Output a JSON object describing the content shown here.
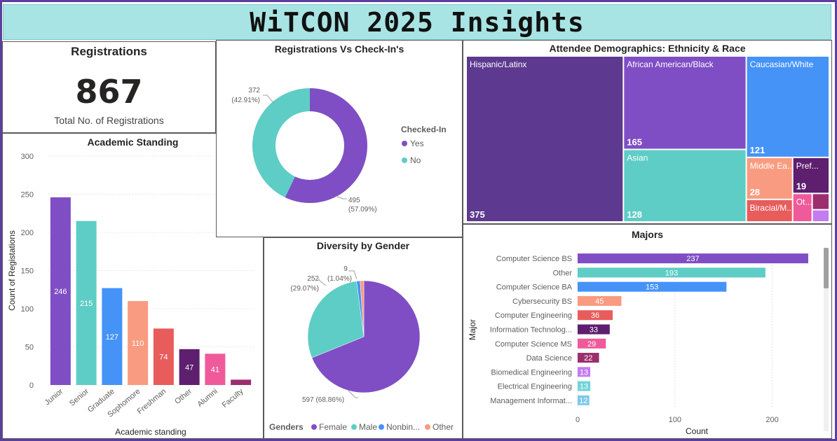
{
  "title": "WiTCON 2025 Insights",
  "kpi": {
    "title": "Registrations",
    "value": "867",
    "label": "Total No. of Registrations"
  },
  "colors": {
    "purple": "#7f4ec4",
    "teal": "#5ecdc5",
    "blue": "#4593f7",
    "salmon": "#f99b80",
    "red": "#e85c5c",
    "dark_purple": "#5d1f6e",
    "pink": "#ef5a9b",
    "magenta": "#9c2e6d",
    "lavender": "#c27bf0",
    "light_teal": "#70d4d8"
  },
  "chart_data": [
    {
      "id": "academic",
      "type": "bar",
      "title": "Academic Standing",
      "xlabel": "Academic standing",
      "ylabel": "Count of Registations",
      "ylim": [
        0,
        300
      ],
      "yticks": [
        "0",
        "50",
        "100",
        "150",
        "200",
        "250",
        "300"
      ],
      "categories": [
        "Junior",
        "Senior",
        "Graduate",
        "Sophomore",
        "Freshman",
        "Other",
        "Alumni",
        "Faculty"
      ],
      "values": [
        246,
        215,
        127,
        110,
        74,
        47,
        41,
        7
      ],
      "data_labels": [
        "246",
        "215",
        "127",
        "110",
        "74",
        "47",
        "41",
        ""
      ],
      "colors": [
        "#7f4ec4",
        "#5ecdc5",
        "#4593f7",
        "#f99b80",
        "#e85c5c",
        "#5d1f6e",
        "#ef5a9b",
        "#9c2e6d"
      ]
    },
    {
      "id": "checkin",
      "type": "pie",
      "title": "Registrations Vs Check-In's",
      "legend_title": "Checked-In",
      "legend_position": "right",
      "slices": [
        {
          "name": "Yes",
          "value": 495,
          "label": "495",
          "pct": "(57.09%)",
          "color": "#7f4ec4"
        },
        {
          "name": "No",
          "value": 372,
          "label": "372",
          "pct": "(42.91%)",
          "color": "#5ecdc5"
        }
      ]
    },
    {
      "id": "ethnicity",
      "type": "heatmap",
      "subtype": "treemap",
      "title": "Attendee Demographics: Ethnicity & Race",
      "items": [
        {
          "name": "Hispanic/Latinx",
          "value": 375,
          "label": "375",
          "color": "#5d3a8f"
        },
        {
          "name": "African American/Black",
          "value": 165,
          "label": "165",
          "color": "#7f4ec4"
        },
        {
          "name": "Caucasian/White",
          "value": 121,
          "label": "121",
          "color": "#4593f7"
        },
        {
          "name": "Asian",
          "value": 128,
          "label": "128",
          "color": "#5ecdc5"
        },
        {
          "name": "Middle Ea...",
          "value": 28,
          "label": "28",
          "color": "#f99b80"
        },
        {
          "name": "Pref...",
          "value": 19,
          "label": "19",
          "color": "#5d1f6e"
        },
        {
          "name": "Biracial/M...",
          "value": 15,
          "label": "",
          "color": "#e85c5c"
        },
        {
          "name": "Ot...",
          "value": 8,
          "label": "",
          "color": "#ef5a9b"
        },
        {
          "name": "",
          "value": 4,
          "label": "",
          "color": "#9c2e6d"
        },
        {
          "name": "",
          "value": 3,
          "label": "",
          "color": "#c27bf0"
        }
      ]
    },
    {
      "id": "gender",
      "type": "pie",
      "title": "Diversity by Gender",
      "legend_title": "Genders",
      "legend_position": "bottom",
      "slices": [
        {
          "name": "Female",
          "value": 597,
          "label": "597",
          "pct": "(68.86%)",
          "color": "#7f4ec4"
        },
        {
          "name": "Male",
          "value": 252,
          "label": "252",
          "pct": "(29.07%)",
          "color": "#5ecdc5"
        },
        {
          "name": "Nonbin...",
          "value": 9,
          "label": "9",
          "pct": "(1.04%)",
          "color": "#4593f7"
        },
        {
          "name": "Other",
          "value": 9,
          "label": "",
          "pct": "",
          "color": "#f99b80"
        }
      ]
    },
    {
      "id": "majors",
      "type": "bar",
      "orientation": "horizontal",
      "title": "Majors",
      "xlabel": "Count",
      "ylabel": "Major",
      "xlim": [
        0,
        250
      ],
      "xticks": [
        "0",
        "100",
        "200"
      ],
      "categories": [
        "Computer Science BS",
        "Other",
        "Computer Science BA",
        "Cybersecurity BS",
        "Computer Engineering",
        "Information Technolog...",
        "Computer Science MS",
        "Data Science",
        "Biomedical Engineering",
        "Electrical Engineering",
        "Management Informat..."
      ],
      "values": [
        237,
        193,
        153,
        45,
        36,
        33,
        29,
        22,
        13,
        13,
        12
      ],
      "data_labels": [
        "237",
        "193",
        "153",
        "45",
        "36",
        "33",
        "29",
        "22",
        "13",
        "13",
        "12"
      ],
      "colors": [
        "#7f4ec4",
        "#5ecdc5",
        "#4593f7",
        "#f99b80",
        "#e85c5c",
        "#5d1f6e",
        "#ef5a9b",
        "#9c2e6d",
        "#c27bf0",
        "#70d4d8",
        "#7fc8e8"
      ]
    }
  ]
}
